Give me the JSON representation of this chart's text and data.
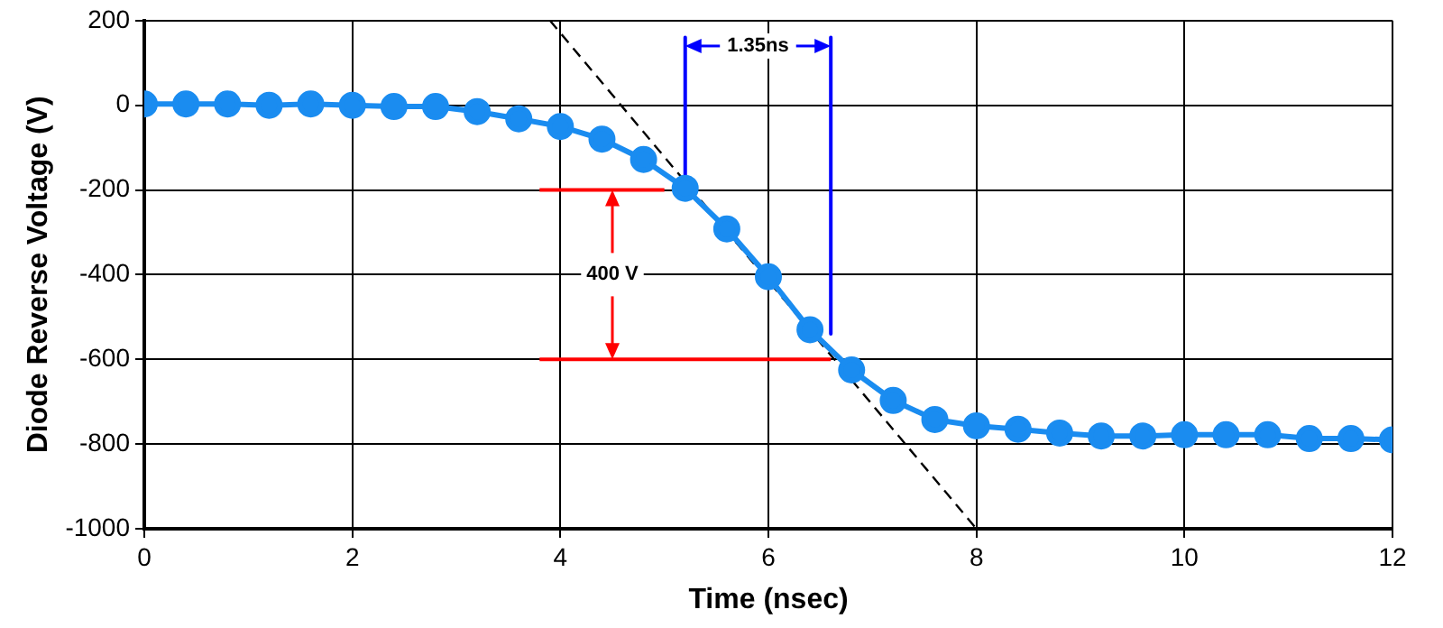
{
  "chart_data": {
    "type": "line",
    "xlabel": "Time (nsec)",
    "ylabel": "Diode Reverse Voltage (V)",
    "xlim": [
      0,
      12
    ],
    "xticks": [
      0,
      2,
      4,
      6,
      8,
      10,
      12
    ],
    "ylim": [
      -1000,
      200
    ],
    "yticks": [
      -1000,
      -800,
      -600,
      -400,
      -200,
      0,
      200
    ],
    "grid": true,
    "marker": "circle",
    "line_style": "solid",
    "annotations": [
      {
        "text": "400 V",
        "x": 4.5,
        "y": -400
      },
      {
        "text": "1.35ns",
        "x": 5.9,
        "y": 140
      }
    ],
    "series": [
      {
        "color": "#1a8cf0",
        "x": [
          0,
          0.4,
          0.8,
          1.2,
          1.6,
          2,
          2.4,
          2.8,
          3.2,
          3.6,
          4,
          4.4,
          4.8,
          5.2,
          5.6,
          6,
          6.4,
          6.8,
          7.2,
          7.6,
          8,
          8.4,
          8.8,
          9.2,
          9.6,
          10,
          10.4,
          10.8,
          11.2,
          11.6,
          12
        ],
        "values": [
          3,
          3,
          3,
          0,
          3,
          0,
          -3,
          -3,
          -15,
          -32,
          -50,
          -80,
          -128,
          -196,
          -292,
          -405,
          -530,
          -625,
          -697,
          -742,
          -757,
          -765,
          -774,
          -781,
          -781,
          -778,
          -778,
          -778,
          -787,
          -787,
          -790
        ]
      },
      {
        "type": "line",
        "color": "#000000",
        "marker": "none",
        "line_style": "dashed",
        "x": [
          3.9,
          8
        ],
        "values": [
          200,
          -1000
        ]
      },
      {
        "type": "line",
        "color": "#ff0000",
        "marker": "none",
        "line_style": "solid",
        "x": [
          3.8,
          5
        ],
        "values": [
          -200,
          -200
        ]
      },
      {
        "type": "line",
        "color": "#ff0000",
        "marker": "none",
        "line_style": "solid",
        "x": [
          3.8,
          6.6
        ],
        "values": [
          -600,
          -600
        ]
      },
      {
        "type": "line",
        "color": "#0000ff",
        "marker": "none",
        "line_style": "solid",
        "x": [
          5.2,
          5.2
        ],
        "values": [
          160,
          -165
        ]
      },
      {
        "type": "line",
        "color": "#0000ff",
        "marker": "none",
        "line_style": "solid",
        "x": [
          6.6,
          6.6
        ],
        "values": [
          160,
          -540
        ]
      }
    ]
  }
}
